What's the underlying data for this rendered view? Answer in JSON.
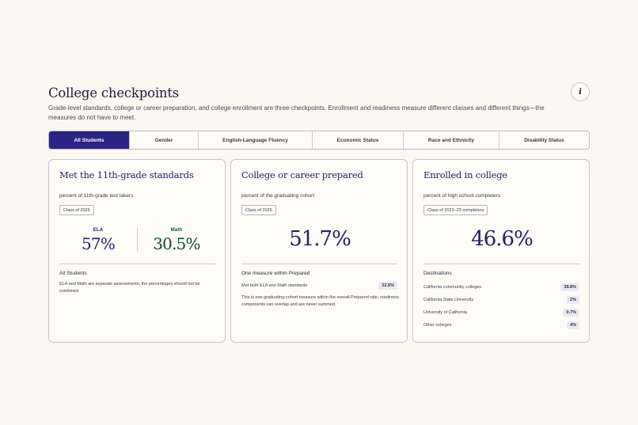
{
  "header": {
    "title": "College checkpoints",
    "info_icon_glyph": "i",
    "subtitle": "Grade-level standards, college or career preparation, and college enrollment are three checkpoints. Enrollment and readiness measure different classes and different things—the measures do not have to meet."
  },
  "tabs": [
    {
      "label": "All Students",
      "active": true
    },
    {
      "label": "Gender",
      "active": false
    },
    {
      "label": "English-Language Fluency",
      "active": false
    },
    {
      "label": "Economic Status",
      "active": false
    },
    {
      "label": "Race and Ethnicity",
      "active": false
    },
    {
      "label": "Disability Status",
      "active": false
    }
  ],
  "cards": {
    "standards": {
      "title": "Met the 11th-grade standards",
      "subtitle": "percent of 11th-grade test takers",
      "badge": "Class of 2025",
      "ela": {
        "label": "ELA",
        "value": "57%",
        "color": "#24206b"
      },
      "math": {
        "label": "Math",
        "value": "30.5%",
        "color": "#0f4a3a"
      },
      "section_heading": "All Students",
      "note": "ELA and Math are separate assessments; the percentages should not be combined."
    },
    "prepared": {
      "title": "College or career prepared",
      "subtitle": "percent of the graduating cohort",
      "badge": "Class of 2025",
      "value": "51.7%",
      "section_heading": "One measure within Prepared",
      "row": {
        "label": "Met both ELA and Math standards",
        "value": "22.5%"
      },
      "note": "This is one graduating-cohort measure within the overall Prepared rate; readiness components can overlap and are never summed."
    },
    "enrolled": {
      "title": "Enrolled in college",
      "subtitle": "percent of high school completers",
      "badge": "Class of 2022–23 completers",
      "value": "46.6%",
      "section_heading": "Destinations",
      "destinations": [
        {
          "label": "California community colleges",
          "value": "39.8%"
        },
        {
          "label": "California State University",
          "value": "2%"
        },
        {
          "label": "University of California",
          "value": "0.7%"
        },
        {
          "label": "Other colleges",
          "value": "4%"
        }
      ]
    }
  },
  "colors": {
    "accent": "#2b2484",
    "headline": "#24206b",
    "math": "#0f4a3a",
    "background": "#fbf8f1"
  }
}
